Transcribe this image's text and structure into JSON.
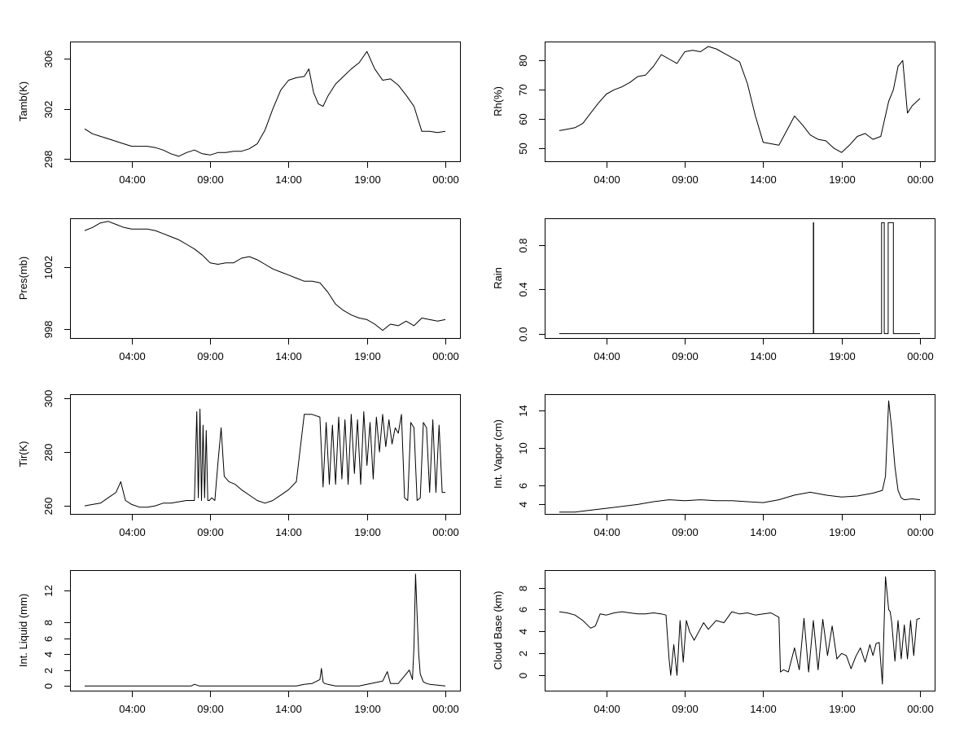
{
  "page": {
    "x_tick_labels": [
      "04:00",
      "09:00",
      "14:00",
      "19:00",
      "00:00"
    ],
    "x_tick_hours": [
      4,
      9,
      14,
      19,
      24
    ],
    "x_range_hours": [
      1,
      24
    ]
  },
  "chart_data": [
    {
      "type": "line",
      "id": "tamb",
      "ylabel": "Tamb(K)",
      "ylim": [
        297.8,
        307.4
      ],
      "yticks": [
        298,
        302,
        306
      ],
      "ytick_labels": [
        "298",
        "302",
        "306"
      ],
      "x": [
        1,
        1.5,
        2,
        2.5,
        3,
        3.5,
        4,
        4.5,
        5,
        5.5,
        6,
        6.5,
        7,
        7.5,
        8,
        8.5,
        9,
        9.5,
        10,
        10.5,
        11,
        11.5,
        12,
        12.5,
        13,
        13.5,
        14,
        14.5,
        15,
        15.3,
        15.6,
        15.9,
        16.2,
        16.5,
        17,
        17.5,
        18,
        18.5,
        19,
        19.5,
        20,
        20.5,
        21,
        21.5,
        22,
        22.5,
        23,
        23.5,
        24
      ],
      "values": [
        300.4,
        300,
        299.8,
        299.6,
        299.4,
        299.2,
        299,
        299,
        299,
        298.9,
        298.7,
        298.4,
        298.2,
        298.5,
        298.7,
        298.4,
        298.3,
        298.5,
        298.5,
        298.6,
        298.6,
        298.8,
        299.2,
        300.3,
        302,
        303.5,
        304.3,
        304.5,
        304.6,
        305.2,
        303.3,
        302.4,
        302.2,
        303,
        304,
        304.6,
        305.2,
        305.7,
        306.6,
        305.2,
        304.3,
        304.4,
        303.9,
        303.1,
        302.2,
        300.2,
        300.2,
        300.1,
        300.2
      ]
    },
    {
      "type": "line",
      "id": "rh",
      "ylabel": "Rh(%)",
      "ylim": [
        45.5,
        86.5
      ],
      "yticks": [
        50,
        60,
        70,
        80
      ],
      "ytick_labels": [
        "50",
        "60",
        "70",
        "80"
      ],
      "x": [
        1,
        1.5,
        2,
        2.5,
        3,
        3.5,
        4,
        4.5,
        5,
        5.5,
        6,
        6.5,
        7,
        7.5,
        8,
        8.5,
        9,
        9.5,
        10,
        10.5,
        11,
        11.5,
        12,
        12.5,
        13,
        13.5,
        14,
        14.5,
        15,
        15.5,
        16,
        16.5,
        17,
        17.5,
        18,
        18.5,
        19,
        19.5,
        20,
        20.5,
        21,
        21.5,
        22,
        22.3,
        22.6,
        22.9,
        23.2,
        23.5,
        24
      ],
      "values": [
        56,
        56.5,
        57,
        58.5,
        62,
        65.5,
        68.5,
        70,
        71,
        72.5,
        74.5,
        75,
        78,
        82,
        80.5,
        79,
        83,
        83.5,
        83,
        84.8,
        84,
        82.5,
        81,
        79.5,
        72,
        61,
        52,
        51.5,
        51,
        56,
        61,
        58,
        54.5,
        53,
        52.5,
        50,
        48.5,
        51,
        54,
        55,
        53,
        54,
        66,
        70,
        78,
        80,
        62,
        64.5,
        67
      ]
    },
    {
      "type": "line",
      "id": "pres",
      "ylabel": "Pres(mb)",
      "ylim": [
        997.4,
        1005.2
      ],
      "yticks": [
        998,
        1002
      ],
      "ytick_labels": [
        "998",
        "1002"
      ],
      "x": [
        1,
        1.5,
        2,
        2.5,
        3,
        3.5,
        4,
        4.5,
        5,
        5.5,
        6,
        6.5,
        7,
        7.5,
        8,
        8.5,
        9,
        9.5,
        10,
        10.5,
        11,
        11.5,
        12,
        12.5,
        13,
        13.5,
        14,
        14.5,
        15,
        15.5,
        16,
        16.5,
        17,
        17.5,
        18,
        18.5,
        19,
        19.5,
        20,
        20.5,
        21,
        21.5,
        22,
        22.5,
        23,
        23.5,
        24
      ],
      "values": [
        1004.4,
        1004.6,
        1004.9,
        1005,
        1004.8,
        1004.6,
        1004.5,
        1004.5,
        1004.5,
        1004.4,
        1004.2,
        1004,
        1003.8,
        1003.5,
        1003.2,
        1002.8,
        1002.3,
        1002.2,
        1002.3,
        1002.3,
        1002.6,
        1002.7,
        1002.5,
        1002.2,
        1001.9,
        1001.7,
        1001.5,
        1001.3,
        1001.1,
        1001.1,
        1001,
        1000.4,
        999.6,
        999.2,
        998.9,
        998.7,
        998.6,
        998.3,
        997.9,
        998.3,
        998.2,
        998.5,
        998.2,
        998.7,
        998.6,
        998.5,
        998.6
      ]
    },
    {
      "type": "line",
      "id": "rain",
      "ylabel": "Rain",
      "ylim": [
        -0.04,
        1.04
      ],
      "yticks": [
        0,
        0.4,
        0.8
      ],
      "ytick_labels": [
        "0.0",
        "0.4",
        "0.8"
      ],
      "x": [
        1,
        17.2,
        17.2,
        17.22,
        17.22,
        21.55,
        21.55,
        21.72,
        21.72,
        21.97,
        21.97,
        22.3,
        22.3,
        24
      ],
      "values": [
        0,
        0,
        1,
        1,
        0,
        0,
        1,
        1,
        0,
        0,
        1,
        1,
        0,
        0
      ]
    },
    {
      "type": "line",
      "id": "tir",
      "ylabel": "Tir(K)",
      "ylim": [
        257,
        301.5
      ],
      "yticks": [
        260,
        280,
        300
      ],
      "ytick_labels": [
        "260",
        "280",
        "300"
      ],
      "x": [
        1,
        1.5,
        2,
        2.5,
        3,
        3.3,
        3.6,
        4,
        4.5,
        5,
        5.5,
        6,
        6.5,
        7,
        7.5,
        8,
        8.15,
        8.25,
        8.35,
        8.45,
        8.55,
        8.65,
        8.75,
        8.85,
        8.95,
        9.1,
        9.3,
        9.5,
        9.7,
        9.9,
        10.2,
        10.6,
        11,
        11.5,
        12,
        12.5,
        13,
        13.5,
        14,
        14.5,
        15,
        15.25,
        15.5,
        16,
        16.2,
        16.4,
        16.6,
        16.8,
        17,
        17.2,
        17.4,
        17.6,
        17.8,
        18,
        18.2,
        18.4,
        18.6,
        18.8,
        19,
        19.2,
        19.4,
        19.6,
        19.8,
        20,
        20.2,
        20.4,
        20.6,
        20.8,
        21,
        21.2,
        21.4,
        21.6,
        21.8,
        22,
        22.2,
        22.4,
        22.6,
        22.8,
        23,
        23.2,
        23.4,
        23.6,
        23.8,
        24
      ],
      "values": [
        260,
        260.5,
        261,
        263,
        265,
        269,
        262,
        260.5,
        259.5,
        259.5,
        260,
        261,
        261,
        261.5,
        262,
        262,
        295,
        263,
        296,
        262,
        290,
        263,
        288,
        262,
        262,
        263,
        262,
        276,
        289,
        271,
        269,
        268,
        266,
        264,
        262,
        261,
        262,
        264,
        266,
        269,
        294,
        294,
        294,
        293,
        267,
        291,
        268,
        290,
        268,
        293,
        270,
        292,
        268,
        294,
        272,
        292,
        268,
        295,
        275,
        291,
        270,
        293,
        280,
        294,
        282,
        292,
        283,
        289,
        287,
        294,
        263,
        262,
        291,
        289,
        262,
        263,
        291,
        289,
        265,
        292,
        265,
        290,
        265,
        265
      ]
    },
    {
      "type": "line",
      "id": "vapor",
      "ylabel": "Int. Vapor (cm)",
      "ylim": [
        3,
        15.7
      ],
      "yticks": [
        4,
        6,
        10,
        14
      ],
      "ytick_labels": [
        "4",
        "6",
        "10",
        "14"
      ],
      "x": [
        1,
        2,
        3,
        4,
        5,
        6,
        7,
        8,
        9,
        10,
        11,
        12,
        13,
        14,
        15,
        16,
        17,
        18,
        19,
        20,
        21,
        21.6,
        21.8,
        22,
        22.2,
        22.4,
        22.6,
        22.8,
        23,
        23.5,
        24
      ],
      "values": [
        3.2,
        3.2,
        3.4,
        3.6,
        3.8,
        4,
        4.3,
        4.5,
        4.4,
        4.5,
        4.4,
        4.4,
        4.3,
        4.2,
        4.5,
        5,
        5.3,
        5,
        4.8,
        4.9,
        5.2,
        5.5,
        7,
        15,
        12,
        8,
        5.5,
        4.7,
        4.5,
        4.6,
        4.5
      ]
    },
    {
      "type": "line",
      "id": "liquid",
      "ylabel": "Int. Liquid (mm)",
      "ylim": [
        -0.6,
        14.6
      ],
      "yticks": [
        0,
        2,
        4,
        6,
        8,
        12
      ],
      "ytick_labels": [
        "0",
        "2",
        "4",
        "6",
        "8",
        "12"
      ],
      "x": [
        1,
        2,
        3,
        4,
        5,
        6,
        7,
        7.8,
        8,
        8.3,
        9,
        10,
        11,
        12,
        13,
        14,
        14.5,
        15,
        15.5,
        16,
        16.1,
        16.2,
        16.3,
        16.5,
        17,
        18,
        18.5,
        19,
        19.5,
        20,
        20.3,
        20.5,
        21,
        21.5,
        21.7,
        21.9,
        22,
        22.1,
        22.2,
        22.3,
        22.4,
        22.6,
        22.8,
        23,
        23.5,
        24
      ],
      "values": [
        0,
        0,
        0,
        0,
        0,
        0,
        0,
        0,
        0.2,
        0,
        0,
        0,
        0,
        0,
        0,
        0,
        0,
        0.2,
        0.3,
        0.8,
        2.2,
        0.5,
        0.3,
        0.2,
        0,
        0,
        0,
        0.2,
        0.4,
        0.6,
        1.8,
        0.3,
        0.3,
        1.5,
        2,
        0.8,
        5,
        14.1,
        9,
        4,
        1.5,
        0.5,
        0.3,
        0.2,
        0.1,
        0
      ]
    },
    {
      "type": "line",
      "id": "cloudbase",
      "ylabel": "Cloud Base (km)",
      "ylim": [
        -1.4,
        9.6
      ],
      "yticks": [
        0,
        2,
        4,
        6,
        8
      ],
      "ytick_labels": [
        "0",
        "2",
        "4",
        "6",
        "8"
      ],
      "x": [
        1,
        1.5,
        2,
        2.5,
        3,
        3.3,
        3.6,
        4,
        4.5,
        5,
        5.5,
        6,
        6.5,
        7,
        7.5,
        7.8,
        8,
        8.1,
        8.3,
        8.5,
        8.7,
        8.9,
        9.1,
        9.3,
        9.6,
        9.9,
        10.2,
        10.5,
        11,
        11.5,
        12,
        12.5,
        13,
        13.5,
        14,
        14.5,
        15,
        15.1,
        15.3,
        15.6,
        16,
        16.3,
        16.6,
        16.9,
        17.2,
        17.5,
        17.8,
        18.1,
        18.4,
        18.7,
        19,
        19.3,
        19.6,
        19.9,
        20.2,
        20.5,
        20.8,
        21,
        21.2,
        21.4,
        21.6,
        21.8,
        21.9,
        22,
        22.1,
        22.2,
        22.4,
        22.6,
        22.8,
        23,
        23.2,
        23.4,
        23.6,
        23.8,
        24
      ],
      "values": [
        5.8,
        5.7,
        5.5,
        5,
        4.3,
        4.5,
        5.6,
        5.5,
        5.7,
        5.8,
        5.7,
        5.6,
        5.6,
        5.7,
        5.6,
        5.5,
        1.5,
        0,
        2.8,
        0,
        5,
        1.2,
        5,
        4,
        3.2,
        4,
        4.8,
        4.2,
        5,
        4.8,
        5.8,
        5.6,
        5.7,
        5.5,
        5.6,
        5.7,
        5.3,
        0.3,
        0.5,
        0.3,
        2.5,
        0.5,
        5.2,
        0.3,
        5,
        0.5,
        5.1,
        1.8,
        4.5,
        1.5,
        2,
        1.8,
        0.6,
        1.7,
        2.5,
        1.2,
        2.8,
        1.8,
        2.9,
        3,
        -0.8,
        9,
        7.5,
        6,
        5.8,
        4.8,
        1.3,
        5,
        1.5,
        4.6,
        1.5,
        5,
        1.8,
        5.1,
        5.2
      ]
    }
  ]
}
